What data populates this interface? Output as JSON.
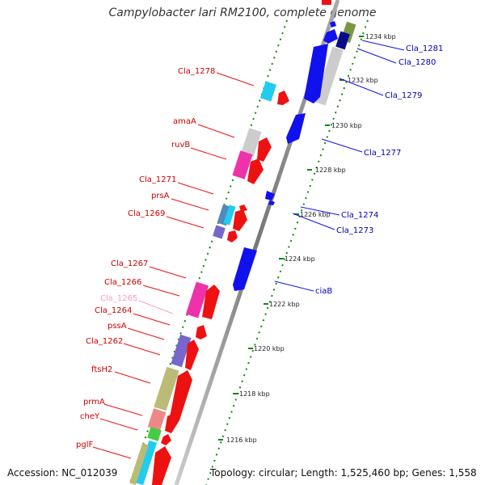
{
  "title": "Campylobacter lari RM2100, complete genome",
  "accession": "Accession: NC_012039",
  "topology": "Topology: circular; Length: 1,525,460 bp; Genes: 1,558",
  "colors": {
    "forward_gene": "#ee1111",
    "reverse_gene": "#1111ee",
    "backbone": "#888888",
    "tick": "#118811",
    "label_forward": "#cc0000",
    "label_reverse": "#0000bb",
    "label_pseudo": "#ff99cc"
  },
  "scale_labels": [
    "1234 kbp",
    "1232 kbp",
    "1230 kbp",
    "1228 kbp",
    "1226 kbp",
    "1224 kbp",
    "1222 kbp",
    "1220 kbp",
    "1218 kbp",
    "1216 kbp"
  ],
  "left_labels": [
    "Cla_1278",
    "amaA",
    "ruvB",
    "Cla_1271",
    "prsA",
    "Cla_1269",
    "Cla_1267",
    "Cla_1266",
    "Cla_1265",
    "Cla_1264",
    "pssA",
    "Cla_1262",
    "ftsH2",
    "prmA",
    "cheY",
    "pglF"
  ],
  "right_labels": [
    "Cla_1281",
    "Cla_1280",
    "Cla_1279",
    "Cla_1277",
    "Cla_1274",
    "Cla_1273",
    "ciaB"
  ]
}
